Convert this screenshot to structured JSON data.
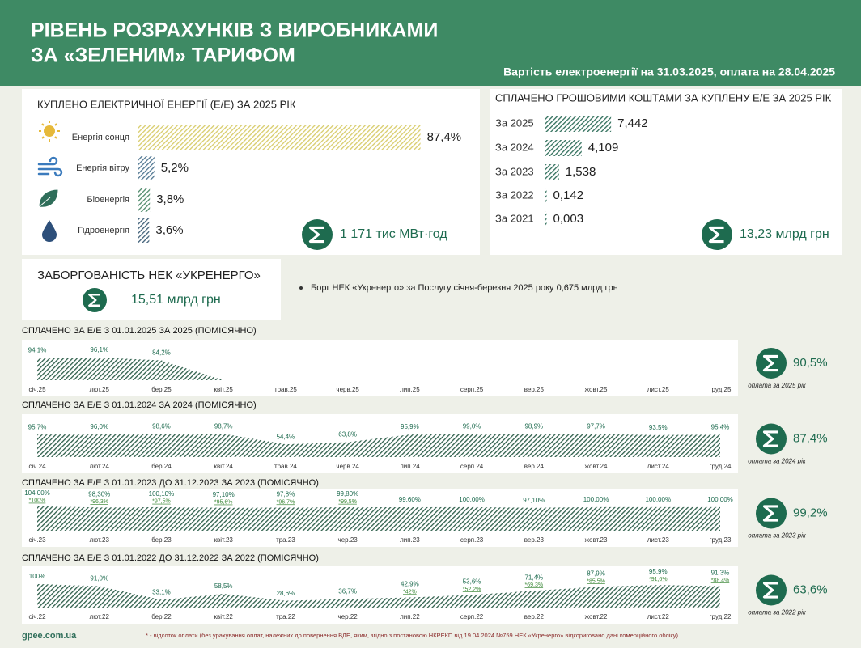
{
  "header": {
    "title_line1": "РІВЕНЬ РОЗРАХУНКІВ З ВИРОБНИКАМИ",
    "title_line2": "ЗА «ЗЕЛЕНИМ» ТАРИФОМ",
    "subtitle": "Вартість електроенергії на 31.03.2025, оплата на 28.04.2025"
  },
  "chart_data": [
    {
      "type": "bar",
      "title": "КУПЛЕНО ЕЛЕКТРИЧНОЇ ЕНЕРГІЇ (Е/Е) ЗА 2025 РІК",
      "categories": [
        "Енергія сонця",
        "Енергія вітру",
        "Біоенергія",
        "Гідроенергія"
      ],
      "values": [
        87.4,
        5.2,
        3.8,
        3.6
      ],
      "value_labels": [
        "87,4%",
        "5,2%",
        "3,8%",
        "3,6%"
      ],
      "colors": [
        "#d8cc6a",
        "#4f7590",
        "#4e8a6a",
        "#3f5f78"
      ],
      "xlim": [
        0,
        100
      ],
      "total": "1 171 тис МВт·год"
    },
    {
      "type": "bar",
      "title": "СПЛАЧЕНО ГРОШОВИМИ КОШТАМИ ЗА КУПЛЕНУ Е/Е ЗА 2025 РІК",
      "categories": [
        "За 2025",
        "За 2024",
        "За 2023",
        "За 2022",
        "За 2021"
      ],
      "values": [
        7.442,
        4.109,
        1.538,
        0.142,
        0.003
      ],
      "value_labels": [
        "7,442",
        "4,109",
        "1,538",
        "0,142",
        "0,003"
      ],
      "colors": [
        "#2f6e5a",
        "#2f6e5a",
        "#2f6e5a",
        "#2f6e5a",
        "#2f6e5a"
      ],
      "xlim": [
        0,
        10
      ],
      "total": "13,23 млрд грн"
    },
    {
      "type": "area",
      "title": "СПЛАЧЕНО ЗА Е/Е З 01.01.2025 ЗА 2025  (ПОМІСЯЧНО)",
      "categories": [
        "січ.25",
        "лют.25",
        "бер.25",
        "квіт.25",
        "трав.25",
        "черв.25",
        "лип.25",
        "серп.25",
        "вер.25",
        "жовт.25",
        "лист.25",
        "груд.25"
      ],
      "values": [
        94.1,
        96.1,
        84.2,
        null,
        null,
        null,
        null,
        null,
        null,
        null,
        null,
        null
      ],
      "value_labels": [
        "94,1%",
        "96,1%",
        "84,2%",
        null,
        null,
        null,
        null,
        null,
        null,
        null,
        null,
        null
      ],
      "color": "#2d5e4a",
      "ylim": [
        0,
        110
      ],
      "total": "90,5%",
      "total_caption": "оплата за 2025 рік"
    },
    {
      "type": "area",
      "title": "СПЛАЧЕНО ЗА Е/Е З 01.01.2024 ЗА 2024  (ПОМІСЯЧНО)",
      "categories": [
        "січ.24",
        "лют.24",
        "бер.24",
        "квіт.24",
        "трав.24",
        "черв.24",
        "лип.24",
        "серп.24",
        "вер.24",
        "жовт.24",
        "лист.24",
        "груд.24"
      ],
      "values": [
        95.7,
        96.0,
        98.6,
        98.7,
        54.4,
        63.8,
        95.9,
        99.0,
        98.9,
        97.7,
        93.5,
        95.4
      ],
      "value_labels": [
        "95,7%",
        "96,0%",
        "98,6%",
        "98,7%",
        "54,4%",
        "63,8%",
        "95,9%",
        "99,0%",
        "98,9%",
        "97,7%",
        "93,5%",
        "95,4%"
      ],
      "color": "#2d5e4a",
      "ylim": [
        0,
        110
      ],
      "total": "87,4%",
      "total_caption": "оплата за 2024 рік"
    },
    {
      "type": "area",
      "title": "СПЛАЧЕНО ЗА Е/Е З 01.01.2023 ДО 31.12.2023 ЗА 2023  (ПОМІСЯЧНО)",
      "categories": [
        "січ.23",
        "лют.23",
        "бер.23",
        "квіт.23",
        "тра.23",
        "чер.23",
        "лип.23",
        "серп.23",
        "вер.23",
        "жовт.23",
        "лист.23",
        "груд.23"
      ],
      "values": [
        104.0,
        98.3,
        100.1,
        97.1,
        97.8,
        99.8,
        99.6,
        100.0,
        97.1,
        100.0,
        100.0,
        100.0
      ],
      "value_labels": [
        "104,00%",
        "98,30%",
        "100,10%",
        "97,10%",
        "97,8%",
        "99,80%",
        "99,60%",
        "100,00%",
        "97,10%",
        "100,00%",
        "100,00%",
        "100,00%"
      ],
      "adjusted_values": [
        100,
        96.3,
        97.5,
        95.6,
        96.7,
        99.5,
        null,
        null,
        null,
        null,
        null,
        null
      ],
      "adjusted_labels": [
        "*100%",
        "*96,3%",
        "*97,5%",
        "*95,6%",
        "*96,7%",
        "*99,5%",
        null,
        null,
        null,
        null,
        null,
        null
      ],
      "color": "#2d5e4a",
      "ylim": [
        0,
        110
      ],
      "total": "99,2%",
      "total_caption": "оплата за 2023 рік"
    },
    {
      "type": "area",
      "title": "СПЛАЧЕНО ЗА Е/Е З 01.01.2022 ДО 31.12.2022 ЗА 2022 (ПОМІСЯЧНО)",
      "categories": [
        "січ.22",
        "лют.22",
        "бер.22",
        "квіт.22",
        "тра.22",
        "чер.22",
        "лип.22",
        "серп.22",
        "вер.22",
        "жовт.22",
        "лист.22",
        "груд.22"
      ],
      "values": [
        100,
        91.0,
        33.1,
        58.5,
        28.6,
        36.7,
        42.9,
        53.6,
        71.4,
        87.9,
        95.9,
        91.3
      ],
      "value_labels": [
        "100%",
        "91,0%",
        "33,1%",
        "58,5%",
        "28,6%",
        "36,7%",
        "42,9%",
        "53,6%",
        "71,4%",
        "87,9%",
        "95,9%",
        "91,3%"
      ],
      "adjusted_values": [
        null,
        null,
        null,
        null,
        null,
        null,
        42,
        52.2,
        69.3,
        85.5,
        91.6,
        88.4
      ],
      "adjusted_labels": [
        null,
        null,
        null,
        null,
        null,
        null,
        "*42%",
        "*52,2%",
        "*69,3%",
        "*85,5%",
        "*91,6%",
        "*88,4%"
      ],
      "color": "#2d5e4a",
      "ylim": [
        0,
        110
      ],
      "total": "63,6%",
      "total_caption": "оплата за 2022 рік"
    }
  ],
  "debt": {
    "title": "ЗАБОРГОВАНІСТЬ НЕК «УКРЕНЕРГО»",
    "value": "15,51 млрд грн",
    "note": "Борг НЕК «Укренерго» за Послугу січня-березня 2025 року 0,675 млрд грн"
  },
  "footer": {
    "site": "gpee.com.ua",
    "note": "* - відсоток оплати (без урахування оплат, належних до повернення ВДЕ, яким, згідно з постановою НКРЕКП від 19.04.2024  №759 НЕК «Укренерго» відкориговано дані комерційного обліку)"
  }
}
